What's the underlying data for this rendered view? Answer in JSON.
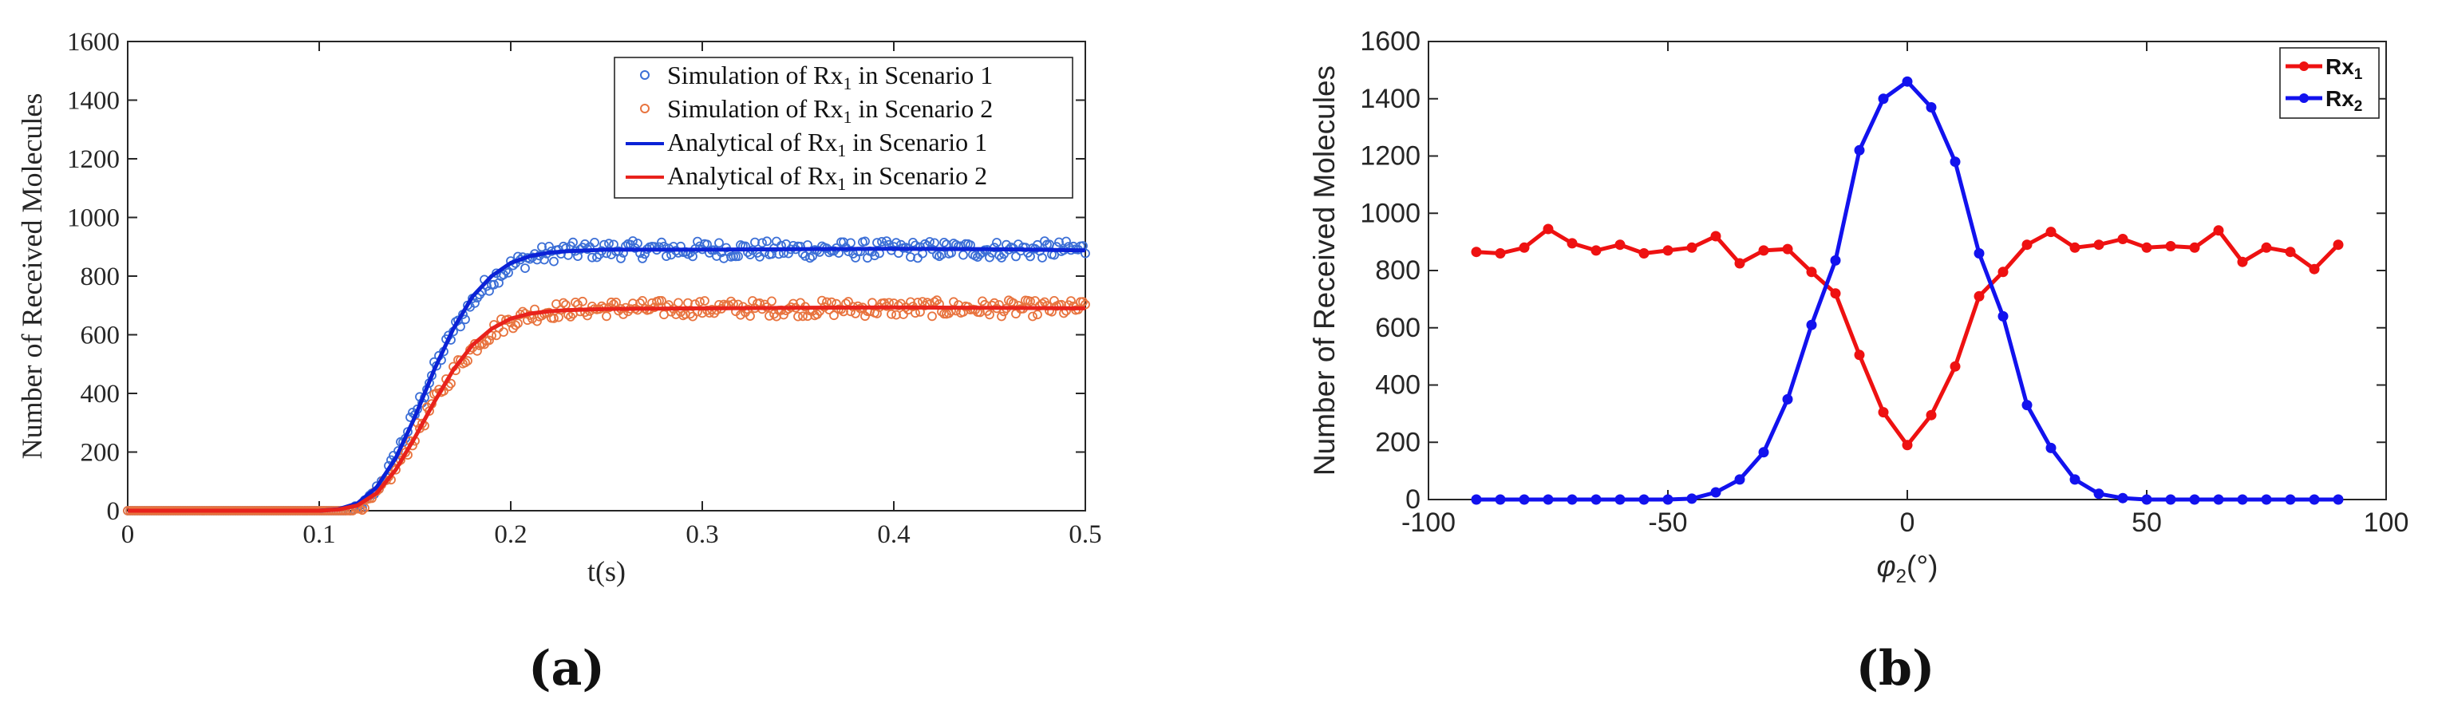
{
  "chart_data": [
    {
      "type": "scatter",
      "panel_label": "(a)",
      "xlabel": "t(s)",
      "ylabel": "Number of Received Molecules",
      "xlim": [
        0,
        0.5
      ],
      "ylim": [
        0,
        1600
      ],
      "xticks": [
        "0",
        "0.1",
        "0.2",
        "0.3",
        "0.4",
        "0.5"
      ],
      "yticks": [
        "0",
        "200",
        "400",
        "600",
        "800",
        "1000",
        "1200",
        "1400",
        "1600"
      ],
      "legend_position": "top-right",
      "series": [
        {
          "name": "Simulation of Rx1 in Scenario 1",
          "label_main": "Simulation of Rx",
          "label_sub": "1",
          "label_tail": " in Scenario 1",
          "style": "markers",
          "color": "#3c6fd6",
          "model": {
            "plateau": 890,
            "t0": 0.115,
            "scale": 0.038,
            "noise": 30
          }
        },
        {
          "name": "Simulation of Rx1 in Scenario 2",
          "label_main": "Simulation of Rx",
          "label_sub": "1",
          "label_tail": " in Scenario 2",
          "style": "markers",
          "color": "#e8743f",
          "model": {
            "plateau": 690,
            "t0": 0.115,
            "scale": 0.038,
            "noise": 28
          }
        },
        {
          "name": "Analytical of Rx1 in Scenario 1",
          "label_main": "Analytical of Rx",
          "label_sub": "1",
          "label_tail": " in Scenario 1",
          "style": "line",
          "color": "#0b22d6",
          "x": [
            0,
            0.1,
            0.11,
            0.12,
            0.13,
            0.14,
            0.15,
            0.16,
            0.17,
            0.18,
            0.19,
            0.2,
            0.21,
            0.22,
            0.23,
            0.24,
            0.25,
            0.3,
            0.35,
            0.4,
            0.45,
            0.5
          ],
          "y": [
            0,
            0,
            5,
            25,
            80,
            180,
            320,
            480,
            620,
            730,
            800,
            845,
            868,
            880,
            885,
            888,
            890,
            890,
            892,
            893,
            892,
            888
          ]
        },
        {
          "name": "Analytical of Rx1 in Scenario 2",
          "label_main": "Analytical of Rx",
          "label_sub": "1",
          "label_tail": " in Scenario 2",
          "style": "line",
          "color": "#e8221c",
          "x": [
            0,
            0.1,
            0.11,
            0.12,
            0.13,
            0.14,
            0.15,
            0.16,
            0.17,
            0.18,
            0.19,
            0.2,
            0.21,
            0.22,
            0.23,
            0.24,
            0.25,
            0.3,
            0.35,
            0.4,
            0.45,
            0.5
          ],
          "y": [
            0,
            0,
            4,
            18,
            60,
            140,
            250,
            370,
            480,
            565,
            620,
            655,
            672,
            680,
            684,
            686,
            688,
            690,
            692,
            693,
            692,
            690
          ]
        }
      ]
    },
    {
      "type": "line",
      "panel_label": "(b)",
      "xlabel": "φ2(°)",
      "xlabel_main": "φ",
      "xlabel_sub": "2",
      "xlabel_tail": "(°)",
      "ylabel": "Number of Received Molecules",
      "xlim": [
        -100,
        100
      ],
      "ylim": [
        0,
        1600
      ],
      "xticks": [
        "-100",
        "-50",
        "0",
        "50",
        "100"
      ],
      "yticks": [
        "0",
        "200",
        "400",
        "600",
        "800",
        "1000",
        "1200",
        "1400",
        "1600"
      ],
      "legend_position": "top-right",
      "x": [
        -90,
        -85,
        -80,
        -75,
        -70,
        -65,
        -60,
        -55,
        -50,
        -45,
        -40,
        -35,
        -30,
        -25,
        -20,
        -15,
        -10,
        -5,
        0,
        5,
        10,
        15,
        20,
        25,
        30,
        35,
        40,
        45,
        50,
        55,
        60,
        65,
        70,
        75,
        80,
        85,
        90
      ],
      "series": [
        {
          "name": "Rx1",
          "label_main": "Rx",
          "label_sub": "1",
          "color": "#ee1111",
          "values": [
            865,
            860,
            880,
            945,
            895,
            870,
            890,
            860,
            870,
            880,
            920,
            825,
            870,
            875,
            795,
            720,
            505,
            305,
            190,
            295,
            465,
            710,
            795,
            890,
            935,
            880,
            890,
            910,
            880,
            885,
            880,
            940,
            830,
            880,
            865,
            805,
            890
          ]
        },
        {
          "name": "Rx2",
          "label_main": "Rx",
          "label_sub": "2",
          "color": "#1212ee",
          "values": [
            0,
            0,
            0,
            0,
            0,
            0,
            0,
            0,
            0,
            3,
            25,
            70,
            165,
            350,
            610,
            835,
            1220,
            1400,
            1460,
            1370,
            1180,
            860,
            640,
            330,
            180,
            70,
            20,
            5,
            0,
            0,
            0,
            0,
            0,
            0,
            0,
            0,
            0
          ]
        }
      ]
    }
  ]
}
